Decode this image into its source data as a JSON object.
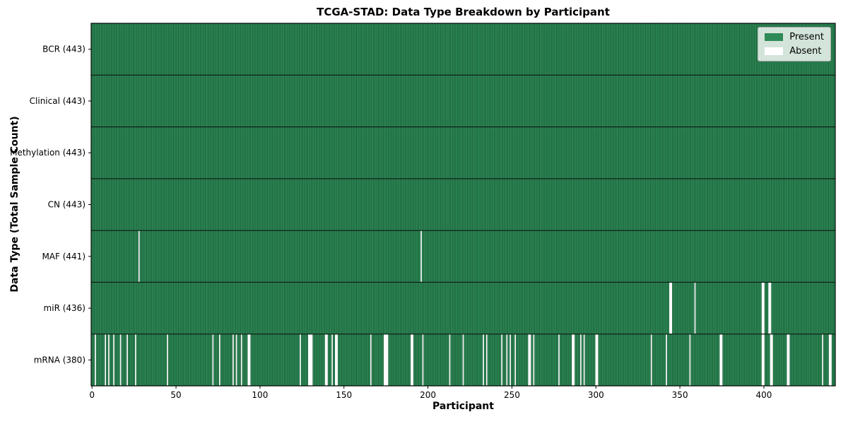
{
  "chart_data": {
    "type": "heatmap",
    "title": "TCGA-STAD: Data Type Breakdown by Participant",
    "xlabel": "Participant",
    "ylabel": "Data Type (Total Sample Count)",
    "n_participants": 443,
    "x_ticks": [
      0,
      50,
      100,
      150,
      200,
      250,
      300,
      350,
      400
    ],
    "legend": [
      {
        "label": "Present",
        "color": "#2e8b57"
      },
      {
        "label": "Absent",
        "color": "#ffffff"
      }
    ],
    "colors": {
      "present": "#2e8b57",
      "absent": "#ffffff",
      "cell_edge": "rgba(8,42,24,0.55)",
      "row_divider": "#0d0d0d",
      "axis": "#000000"
    },
    "rows": [
      {
        "label": "BCR (443)",
        "data_type": "BCR",
        "present_count": 443,
        "absent_participants": []
      },
      {
        "label": "Clinical (443)",
        "data_type": "Clinical",
        "present_count": 443,
        "absent_participants": []
      },
      {
        "label": "Methylation (443)",
        "data_type": "Methylation",
        "present_count": 443,
        "absent_participants": []
      },
      {
        "label": "CN (443)",
        "data_type": "CN",
        "present_count": 443,
        "absent_participants": []
      },
      {
        "label": "MAF (441)",
        "data_type": "MAF",
        "present_count": 441,
        "absent_participants": [
          28,
          196
        ]
      },
      {
        "label": "miR (436)",
        "data_type": "miR",
        "present_count": 436,
        "absent_participants": [
          344,
          345,
          359,
          399,
          400,
          403,
          404
        ]
      },
      {
        "label": "mRNA (380)",
        "data_type": "mRNA",
        "present_count": 380,
        "absent_participants": [
          2,
          8,
          10,
          13,
          17,
          21,
          26,
          45,
          72,
          76,
          84,
          86,
          89,
          93,
          94,
          124,
          129,
          130,
          131,
          139,
          140,
          143,
          145,
          146,
          166,
          174,
          175,
          176,
          190,
          191,
          197,
          213,
          221,
          233,
          235,
          244,
          247,
          249,
          252,
          260,
          261,
          263,
          278,
          286,
          287,
          291,
          293,
          300,
          301,
          333,
          342,
          356,
          374,
          375,
          399,
          400,
          404,
          405,
          414,
          415,
          435,
          439,
          440
        ]
      }
    ]
  }
}
